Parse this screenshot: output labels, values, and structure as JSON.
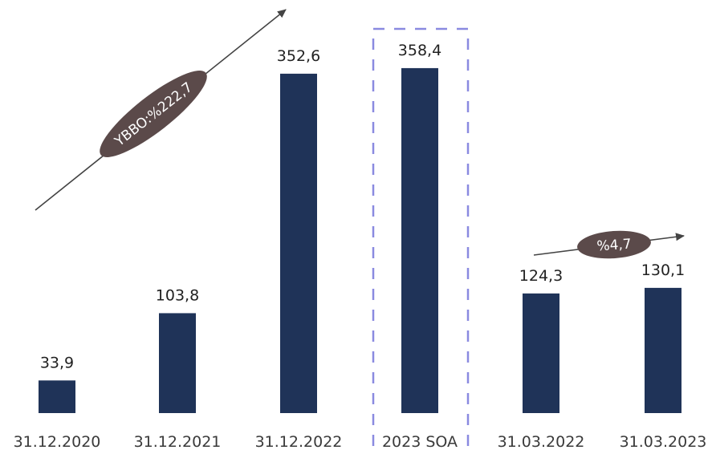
{
  "chart_data": {
    "type": "bar",
    "categories": [
      "31.12.2020",
      "31.12.2021",
      "31.12.2022",
      "2023 SOA",
      "31.03.2022",
      "31.03.2023"
    ],
    "values": [
      33.9,
      103.8,
      352.6,
      358.4,
      124.3,
      130.1
    ],
    "value_labels": [
      "33,9",
      "103,8",
      "352,6",
      "358,4",
      "124,3",
      "130,1"
    ],
    "ylim": [
      0,
      400
    ],
    "grid": false,
    "highlighted_category": "2023 SOA",
    "annotations": [
      {
        "text": "YBBO:%222,7",
        "from_category": "31.12.2020",
        "to_category": "31.12.2022"
      },
      {
        "text": "%4,7",
        "from_category": "31.03.2022",
        "to_category": "31.03.2023"
      }
    ]
  },
  "colors": {
    "bar": "#1f3358",
    "badge": "#5b4a4a",
    "arrow": "#444444",
    "highlight_border": "#8a8ae0"
  }
}
